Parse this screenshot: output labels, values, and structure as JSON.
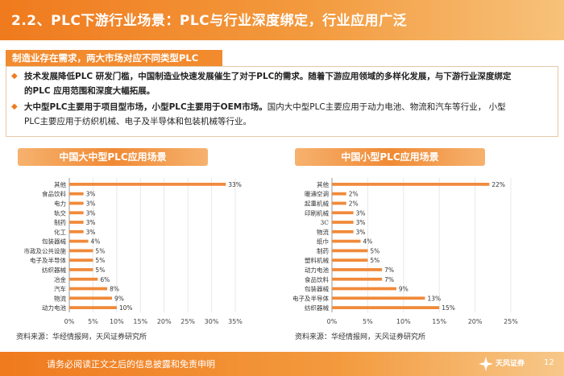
{
  "header": {
    "title": "2.2、PLC下游行业场景：PLC与行业深度绑定，行业应用广泛"
  },
  "subtitle": "制造业存在需求，两大市场对应不同类型PLC",
  "bullets": [
    {
      "bold": "技术发展降低PLC 研发门槛，中国制造业快速发展催生了对于PLC的需求。随着下游应用领域的多样化发展，与下游行业深度绑定",
      "bold2": "的PLC 应用范围和深度大幅拓展。"
    },
    {
      "bold": "大中型PLC主要用于项目型市场，小型PLC主要用于OEM市场。",
      "normal": "国内大中型PLC主要应用于动力电池、物流和汽车等行业，  小型",
      "normal2": "PLC主要应用于纺织机械、电子及半导体和包装机械等行业。"
    }
  ],
  "chart_data": [
    {
      "type": "bar",
      "orientation": "horizontal",
      "title": "中国大中型PLC应用场景",
      "categories": [
        "其他",
        "食品饮料",
        "电力",
        "轨交",
        "制药",
        "化工",
        "包装器械",
        "市政及公共设施",
        "电子及半导体",
        "纺织器械",
        "冶金",
        "汽车",
        "物流",
        "动力电池"
      ],
      "values": [
        33,
        3,
        3,
        3,
        3,
        3,
        4,
        5,
        5,
        5,
        6,
        8,
        9,
        10
      ],
      "value_labels": [
        "33%",
        "3%",
        "3%",
        "3%",
        "3%",
        "3%",
        "4%",
        "5%",
        "5%",
        "5%",
        "6%",
        "8%",
        "9%",
        "10%"
      ],
      "xlim": [
        0,
        35
      ],
      "xticks": [
        "0%",
        "5%",
        "10%",
        "15%",
        "20%",
        "25%",
        "30%",
        "35%"
      ],
      "source": "资料来源：华经情报网，天风证券研究所"
    },
    {
      "type": "bar",
      "orientation": "horizontal",
      "title": "中国小型PLC应用场景",
      "categories": [
        "其他",
        "暖通空调",
        "起重机械",
        "印刷机械",
        "3C",
        "物流",
        "纸巾",
        "制药",
        "塑料机械",
        "动力电池",
        "食品饮料",
        "包装器械",
        "电子及半导体",
        "纺织器械"
      ],
      "values": [
        22,
        2,
        2,
        3,
        3,
        3,
        4,
        5,
        5,
        7,
        7,
        9,
        13,
        15
      ],
      "value_labels": [
        "22%",
        "2%",
        "2%",
        "3%",
        "3%",
        "3%",
        "4%",
        "5%",
        "5%",
        "7%",
        "7%",
        "9%",
        "13%",
        "15%"
      ],
      "xlim": [
        0,
        25
      ],
      "xticks": [
        "0%",
        "5%",
        "10%",
        "15%",
        "20%",
        "25%"
      ],
      "source": "资料来源：华经情报网，天风证券研究所"
    }
  ],
  "footer": {
    "disclaimer": "请务必阅读正文之后的信息披露和免责申明",
    "logo_text": "天风证券",
    "page": "12"
  },
  "colors": {
    "accent": "#f07a1e",
    "bar": "#f08a3a",
    "bar_light": "#f4a65e"
  }
}
